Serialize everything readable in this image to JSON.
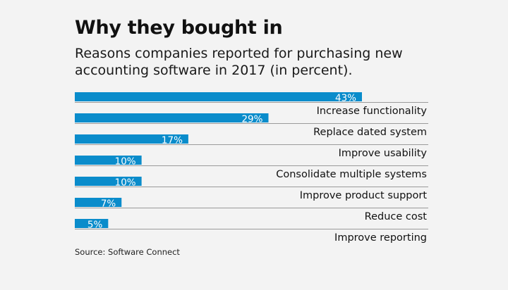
{
  "chart_data": {
    "type": "bar",
    "orientation": "horizontal",
    "title": "Why they bought in",
    "subtitle": "Reasons companies reported for purchasing new accounting software in 2017 (in percent).",
    "categories": [
      "Increase functionality",
      "Replace dated system",
      "Improve usability",
      "Consolidate multiple systems",
      "Improve product support",
      "Reduce cost",
      "Improve reporting"
    ],
    "values": [
      43,
      29,
      17,
      10,
      10,
      7,
      5
    ],
    "value_labels": [
      "43%",
      "29%",
      "17%",
      "10%",
      "10%",
      "7%",
      "5%"
    ],
    "xlabel": "",
    "ylabel": "",
    "xlim": [
      0,
      43
    ],
    "grid": false,
    "legend": "none",
    "bar_color": "#0a8ccb",
    "source": "Source: Software Connect"
  }
}
